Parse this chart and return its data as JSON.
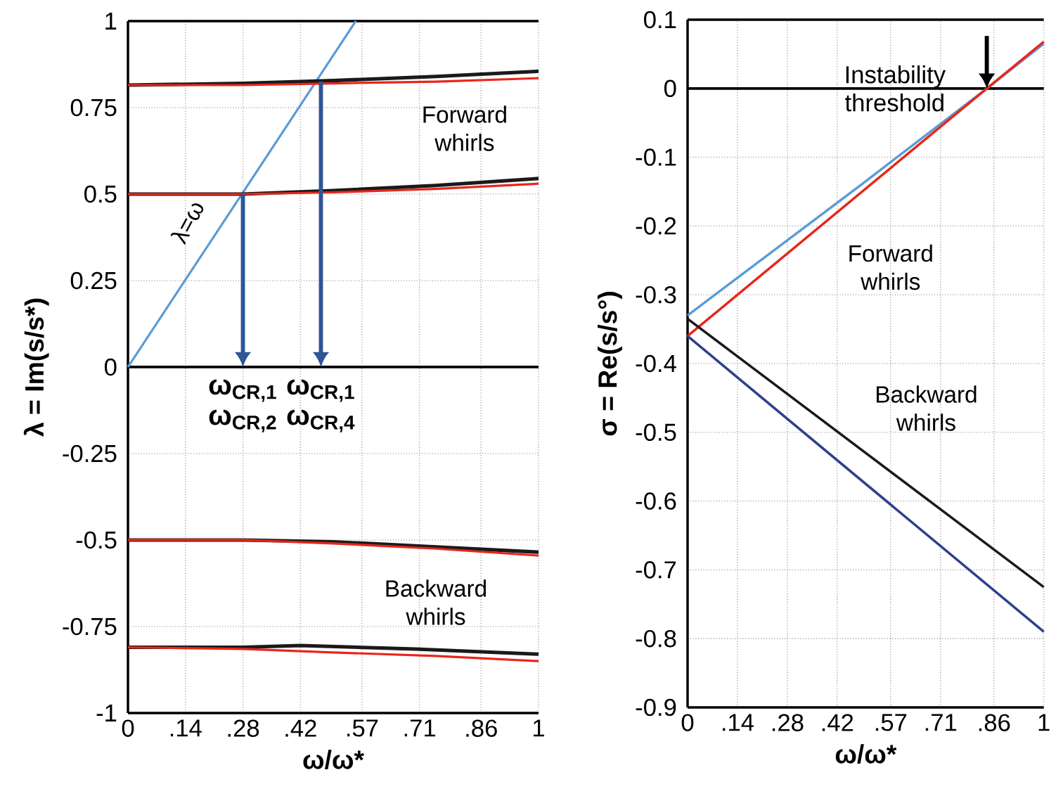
{
  "chart_data": [
    {
      "type": "line",
      "xlabel": "ω/ω*",
      "ylabel": "λ = Im(s/s*)",
      "xlim": [
        0,
        1
      ],
      "ylim": [
        -1,
        1
      ],
      "xticks": [
        0,
        {
          "value": 0.14,
          "label": ".14"
        },
        {
          "value": 0.28,
          "label": ".28"
        },
        {
          "value": 0.42,
          "label": ".42"
        },
        {
          "value": 0.57,
          "label": ".57"
        },
        {
          "value": 0.71,
          "label": ".71"
        },
        {
          "value": 0.86,
          "label": ".86"
        },
        1
      ],
      "yticks": [
        -1,
        -0.75,
        -0.5,
        -0.25,
        0,
        0.25,
        0.5,
        0.75,
        1
      ],
      "grid": true,
      "ref_lines": [
        {
          "axis": "y",
          "value": 0,
          "color": "#000000"
        }
      ],
      "series": [
        {
          "color": "#5b9bd5",
          "x": [
            0,
            0.555
          ],
          "values": [
            0,
            1
          ]
        },
        {
          "color": "#1a1a1a",
          "x": [
            0,
            0.28,
            0.5,
            0.75,
            1
          ],
          "values": [
            0.815,
            0.82,
            0.828,
            0.84,
            0.855
          ]
        },
        {
          "color": "#e8261b",
          "x": [
            0,
            0.28,
            0.5,
            0.75,
            1
          ],
          "values": [
            0.815,
            0.815,
            0.82,
            0.825,
            0.835
          ]
        },
        {
          "color": "#1a1a1a",
          "x": [
            0,
            0.28,
            0.5,
            0.75,
            1
          ],
          "values": [
            0.5,
            0.5,
            0.51,
            0.525,
            0.545
          ]
        },
        {
          "color": "#e8261b",
          "x": [
            0,
            0.28,
            0.5,
            0.75,
            1
          ],
          "values": [
            0.5,
            0.5,
            0.505,
            0.515,
            0.53
          ]
        },
        {
          "color": "#1a1a1a",
          "x": [
            0,
            0.28,
            0.5,
            0.75,
            1
          ],
          "values": [
            -0.5,
            -0.5,
            -0.505,
            -0.52,
            -0.535
          ]
        },
        {
          "color": "#e8261b",
          "x": [
            0,
            0.28,
            0.5,
            0.75,
            1
          ],
          "values": [
            -0.5,
            -0.5,
            -0.51,
            -0.525,
            -0.545
          ]
        },
        {
          "color": "#1a1a1a",
          "x": [
            0,
            0.28,
            0.42,
            0.7,
            1
          ],
          "values": [
            -0.81,
            -0.81,
            -0.805,
            -0.815,
            -0.83
          ]
        },
        {
          "color": "#e8261b",
          "x": [
            0,
            0.28,
            0.5,
            0.75,
            1
          ],
          "values": [
            -0.81,
            -0.815,
            -0.825,
            -0.835,
            -0.85
          ]
        }
      ],
      "annotations": [
        "λ=ω",
        "Forward whirls",
        "Backward whirls",
        {
          "text": "ω$_{CR,1}$",
          "x": 0.28,
          "y": 0.5
        },
        "ω$_{CR,2}$",
        {
          "text": "ω$_{CR,1}$",
          "x": 0.47,
          "y": 0.825
        },
        "ω$_{CR,4}$"
      ]
    },
    {
      "type": "line",
      "xlabel": "ω/ω*",
      "ylabel": "σ = Re(s/s°)",
      "xlim": [
        0,
        1
      ],
      "ylim": [
        -0.9,
        0.1
      ],
      "xticks": [
        0,
        {
          "value": 0.14,
          "label": ".14"
        },
        {
          "value": 0.28,
          "label": ".28"
        },
        {
          "value": 0.42,
          "label": ".42"
        },
        {
          "value": 0.57,
          "label": ".57"
        },
        {
          "value": 0.71,
          "label": ".71"
        },
        {
          "value": 0.86,
          "label": ".86"
        },
        1
      ],
      "yticks": [
        -0.9,
        -0.8,
        -0.7,
        -0.6,
        -0.5,
        -0.4,
        -0.3,
        -0.2,
        -0.1,
        0,
        0.1
      ],
      "grid": true,
      "ref_lines": [
        {
          "axis": "y",
          "value": 0,
          "color": "#000000"
        }
      ],
      "series": [
        {
          "color": "#5b9bd5",
          "x": [
            0,
            0.5,
            0.84,
            1
          ],
          "values": [
            -0.33,
            -0.135,
            0,
            0.065
          ]
        },
        {
          "color": "#e8261b",
          "x": [
            0,
            0.84,
            1
          ],
          "values": [
            -0.36,
            0,
            0.068
          ]
        },
        {
          "color": "#1a1a1a",
          "x": [
            0,
            1
          ],
          "values": [
            -0.335,
            -0.725
          ]
        },
        {
          "color": "#2e3f8f",
          "x": [
            0,
            1
          ],
          "values": [
            -0.36,
            -0.79
          ]
        }
      ],
      "annotations": [
        "Forward whirls",
        "Backward whirls",
        {
          "text": "Instability threshold",
          "x": 0.84,
          "y": 0
        }
      ]
    }
  ]
}
